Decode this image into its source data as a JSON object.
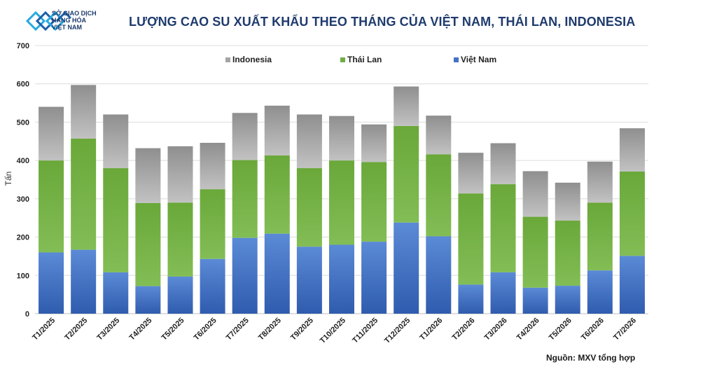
{
  "header": {
    "logo_lines": [
      "SỞ GIAO DỊCH",
      "HÀNG HÓA",
      "VIỆT NAM"
    ],
    "logo_colors": {
      "primary": "#1b5ea8",
      "accent": "#27a9e1"
    }
  },
  "source": "Nguồn: MXV tổng hợp",
  "chart_data": {
    "type": "bar",
    "stacked": true,
    "title": "LƯỢNG CAO SU XUẤT KHẨU THEO THÁNG CỦA VIỆT NAM, THÁI LAN, INDONESIA",
    "xlabel": "",
    "ylabel": "Tấn",
    "ylim": [
      0,
      700
    ],
    "yticks": [
      0,
      100,
      200,
      300,
      400,
      500,
      600,
      700
    ],
    "grid": true,
    "legend_position": "top",
    "categories": [
      "T1/2025",
      "T2/2025",
      "T3/2025",
      "T4/2025",
      "T5/2025",
      "T6/2025",
      "T7/2025",
      "T8/2025",
      "T9/2025",
      "T10/2025",
      "T11/2025",
      "T12/2025",
      "T1/2026",
      "T2/2026",
      "T3/2026",
      "T4/2026",
      "T5/2026",
      "T6/2026",
      "T7/2026"
    ],
    "legend_order": [
      "Indonesia",
      "Thái Lan",
      "Việt Nam"
    ],
    "series": [
      {
        "name": "Việt Nam",
        "color": "#4472c4",
        "values": [
          160,
          167,
          108,
          72,
          97,
          143,
          198,
          209,
          175,
          180,
          188,
          238,
          202,
          76,
          108,
          68,
          73,
          113,
          151
        ]
      },
      {
        "name": "Thái Lan",
        "color": "#70ad47",
        "values": [
          240,
          290,
          272,
          217,
          193,
          182,
          203,
          204,
          205,
          220,
          208,
          252,
          214,
          238,
          230,
          185,
          170,
          177,
          220
        ]
      },
      {
        "name": "Indonesia",
        "color": "#a5a5a5",
        "values": [
          140,
          140,
          140,
          143,
          147,
          121,
          123,
          130,
          140,
          116,
          98,
          103,
          101,
          106,
          107,
          119,
          99,
          107,
          113
        ]
      }
    ]
  }
}
